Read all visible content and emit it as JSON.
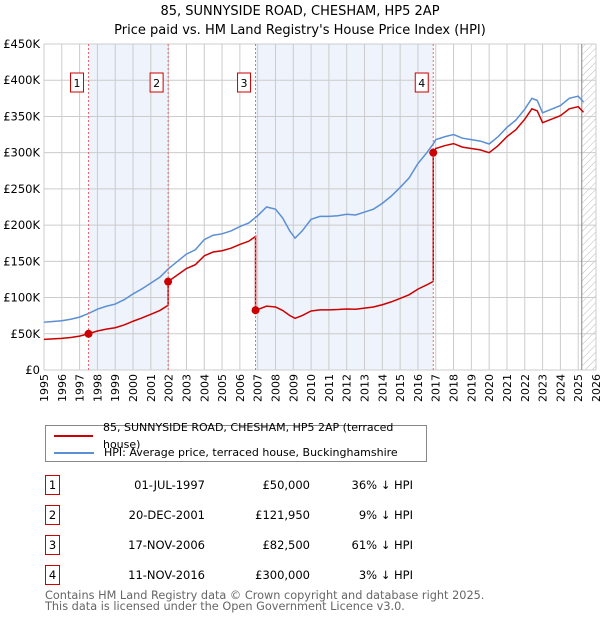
{
  "title": "85, SUNNYSIDE ROAD, CHESHAM, HP5 2AP",
  "subtitle": "Price paid vs. HM Land Registry's House Price Index (HPI)",
  "chart_data": {
    "type": "line",
    "ylim": [
      0,
      450000
    ],
    "xlim": [
      1995,
      2026
    ],
    "y_ticks": [
      {
        "v": 0,
        "label": "£0"
      },
      {
        "v": 50000,
        "label": "£50K"
      },
      {
        "v": 100000,
        "label": "£100K"
      },
      {
        "v": 150000,
        "label": "£150K"
      },
      {
        "v": 200000,
        "label": "£200K"
      },
      {
        "v": 250000,
        "label": "£250K"
      },
      {
        "v": 300000,
        "label": "£300K"
      },
      {
        "v": 350000,
        "label": "£350K"
      },
      {
        "v": 400000,
        "label": "£400K"
      },
      {
        "v": 450000,
        "label": "£450K"
      }
    ],
    "x_ticks": [
      "1995",
      "1996",
      "1997",
      "1998",
      "1999",
      "2000",
      "2001",
      "2002",
      "2003",
      "2004",
      "2005",
      "2006",
      "2007",
      "2008",
      "2009",
      "2010",
      "2011",
      "2012",
      "2013",
      "2014",
      "2015",
      "2016",
      "2017",
      "2018",
      "2019",
      "2020",
      "2021",
      "2022",
      "2023",
      "2024",
      "2025",
      "2026"
    ],
    "colors": {
      "property": "#cc0000",
      "hpi": "#5b8fd4",
      "shade": "#eef3fc"
    },
    "hpi_series": {
      "name": "HPI: Average price, terraced house, Buckinghamshire",
      "x": [
        1995,
        1995.5,
        1996,
        1996.5,
        1997,
        1997.5,
        1998,
        1998.5,
        1999,
        1999.5,
        2000,
        2000.5,
        2001,
        2001.5,
        2002,
        2002.5,
        2003,
        2003.5,
        2004,
        2004.5,
        2005,
        2005.5,
        2006,
        2006.5,
        2007,
        2007.5,
        2008,
        2008.4,
        2008.8,
        2009.1,
        2009.5,
        2010,
        2010.5,
        2011,
        2011.5,
        2012,
        2012.5,
        2013,
        2013.5,
        2014,
        2014.5,
        2015,
        2015.5,
        2016,
        2016.5,
        2016.86,
        2017,
        2017.5,
        2018,
        2018.5,
        2019,
        2019.5,
        2020,
        2020.5,
        2021,
        2021.5,
        2022,
        2022.4,
        2022.7,
        2023,
        2023.5,
        2024,
        2024.5,
        2025,
        2025.3
      ],
      "y": [
        66000,
        67000,
        68000,
        70000,
        73000,
        78000,
        84000,
        88000,
        91000,
        97000,
        105000,
        112000,
        120000,
        128000,
        140000,
        150000,
        160000,
        166000,
        180000,
        186000,
        188000,
        192000,
        198000,
        203000,
        213000,
        225000,
        222000,
        210000,
        192000,
        182000,
        192000,
        208000,
        212000,
        212000,
        213000,
        215000,
        214000,
        218000,
        222000,
        230000,
        240000,
        252000,
        265000,
        285000,
        300000,
        312000,
        318000,
        322000,
        325000,
        320000,
        318000,
        316000,
        312000,
        322000,
        335000,
        345000,
        360000,
        375000,
        372000,
        355000,
        360000,
        365000,
        375000,
        378000,
        370000
      ]
    },
    "sales": [
      {
        "n": "1",
        "x": 1997.5,
        "date": "01-JUL-1997",
        "price": 50000,
        "price_label": "£50,000",
        "hpi_diff": "36% ↓ HPI"
      },
      {
        "n": "2",
        "x": 2001.97,
        "date": "20-DEC-2001",
        "price": 121950,
        "price_label": "£121,950",
        "hpi_diff": "9% ↓ HPI"
      },
      {
        "n": "3",
        "x": 2006.88,
        "date": "17-NOV-2006",
        "price": 82500,
        "price_label": "£82,500",
        "hpi_diff": "61% ↓ HPI"
      },
      {
        "n": "4",
        "x": 2016.86,
        "date": "11-NOV-2016",
        "price": 300000,
        "price_label": "£300,000",
        "hpi_diff": "3% ↓ HPI"
      }
    ],
    "forecast_start": 2025.2
  },
  "legend": {
    "property": "85, SUNNYSIDE ROAD, CHESHAM, HP5 2AP (terraced house)",
    "hpi": "HPI: Average price, terraced house, Buckinghamshire"
  },
  "footer": {
    "line1": "Contains HM Land Registry data © Crown copyright and database right 2025.",
    "line2": "This data is licensed under the Open Government Licence v3.0."
  }
}
